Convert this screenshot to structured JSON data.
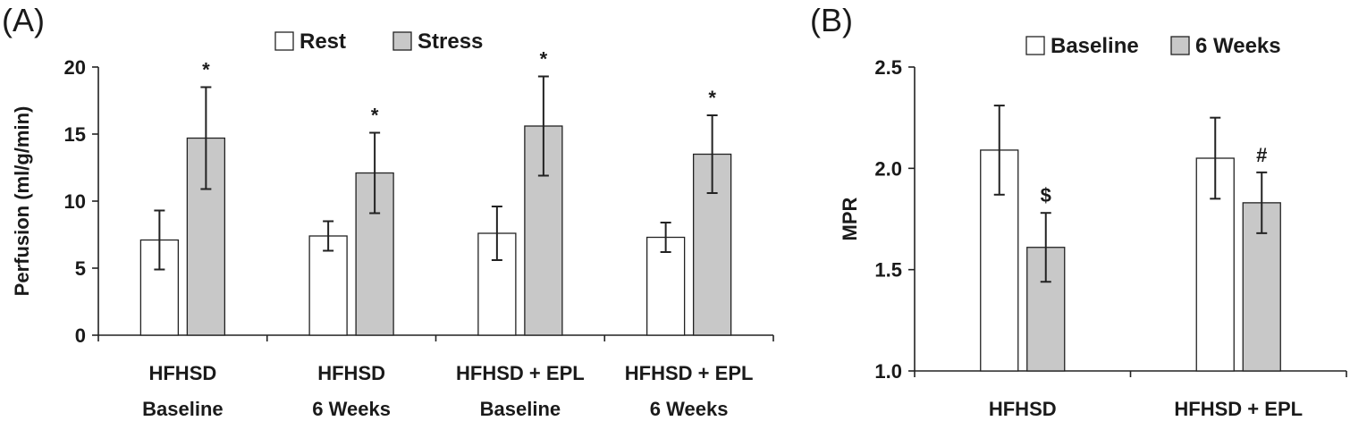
{
  "chart_data": [
    {
      "panel": "(A)",
      "type": "bar",
      "ylabel": "Perfusion (ml/g/min)",
      "ylim": [
        0,
        20
      ],
      "yticks": [
        0,
        5,
        10,
        15,
        20
      ],
      "grid": false,
      "legend": "top-center",
      "categories": [
        [
          "HFHSD",
          "Baseline"
        ],
        [
          "HFHSD",
          "6 Weeks"
        ],
        [
          "HFHSD + EPL",
          "Baseline"
        ],
        [
          "HFHSD + EPL",
          "6 Weeks"
        ]
      ],
      "series": [
        {
          "name": "Rest",
          "color": "#ffffff",
          "values": [
            7.1,
            7.4,
            7.6,
            7.3
          ],
          "errors": [
            2.2,
            1.1,
            2.0,
            1.1
          ],
          "markers": [
            "",
            "",
            "",
            ""
          ]
        },
        {
          "name": "Stress",
          "color": "#c8c8c8",
          "values": [
            14.7,
            12.1,
            15.6,
            13.5
          ],
          "errors": [
            3.8,
            3.0,
            3.7,
            2.9
          ],
          "markers": [
            "*",
            "*",
            "*",
            "*"
          ]
        }
      ]
    },
    {
      "panel": "(B)",
      "type": "bar",
      "ylabel": "MPR",
      "ylim": [
        1.0,
        2.5
      ],
      "yticks": [
        "1.0",
        "1.5",
        "2.0",
        "2.5"
      ],
      "grid": false,
      "legend": "top-right",
      "categories": [
        [
          "HFHSD"
        ],
        [
          "HFHSD + EPL"
        ]
      ],
      "series": [
        {
          "name": "Baseline",
          "color": "#ffffff",
          "values": [
            2.09,
            2.05
          ],
          "errors": [
            0.22,
            0.2
          ],
          "markers": [
            "",
            ""
          ]
        },
        {
          "name": "6 Weeks",
          "color": "#c8c8c8",
          "values": [
            1.61,
            1.83
          ],
          "errors": [
            0.17,
            0.15
          ],
          "markers": [
            "$",
            "#"
          ]
        }
      ]
    }
  ]
}
